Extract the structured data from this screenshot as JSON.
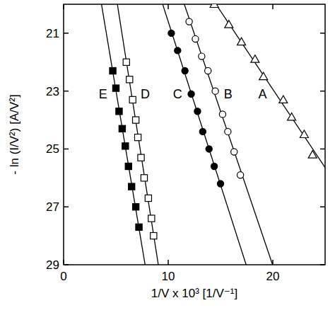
{
  "chart_data": {
    "type": "scatter",
    "x_label": "1/V x 10³  [1/V⁻¹]",
    "y_label": "- ln (I/V²)  [A/V²]",
    "xlim": [
      0,
      25
    ],
    "xticks": [
      0,
      10,
      20
    ],
    "ylim": [
      20,
      29
    ],
    "yticks": [
      21,
      23,
      25,
      27,
      29
    ],
    "grid": false,
    "series": [
      {
        "name": "A",
        "color": "#000000",
        "marker": "triangle-open",
        "line_style": "solid",
        "x": [
          14.4,
          15.8,
          17.0,
          18.3,
          19.1,
          21.0,
          21.8,
          23.0,
          23.8
        ],
        "values": [
          20.0,
          20.7,
          21.3,
          21.9,
          22.5,
          23.3,
          23.9,
          24.5,
          25.2
        ]
      },
      {
        "name": "B",
        "color": "#000000",
        "marker": "circle-open",
        "line_style": "solid",
        "x": [
          12.0,
          12.6,
          13.2,
          13.8,
          14.5,
          15.2,
          15.7,
          16.3,
          16.9
        ],
        "values": [
          20.6,
          21.2,
          21.8,
          22.3,
          23.0,
          23.8,
          24.4,
          25.1,
          25.9
        ]
      },
      {
        "name": "C",
        "color": "#000000",
        "marker": "circle-filled",
        "line_style": "solid",
        "x": [
          10.3,
          10.9,
          11.6,
          12.2,
          12.8,
          13.3,
          13.9,
          14.4,
          15.0
        ],
        "values": [
          21.0,
          21.6,
          22.3,
          23.1,
          23.7,
          24.4,
          25.0,
          25.6,
          26.2
        ]
      },
      {
        "name": "D",
        "color": "#000000",
        "marker": "square-open",
        "line_style": "solid",
        "x": [
          6.0,
          6.3,
          6.6,
          6.9,
          7.1,
          7.4,
          7.7,
          8.1,
          8.4,
          8.6
        ],
        "values": [
          22.0,
          22.6,
          23.3,
          24.0,
          24.6,
          25.3,
          26.0,
          26.7,
          27.4,
          28.0
        ]
      },
      {
        "name": "E",
        "color": "#000000",
        "marker": "square-filled",
        "line_style": "solid",
        "x": [
          4.7,
          5.0,
          5.3,
          5.6,
          5.9,
          6.2,
          6.5,
          6.9,
          7.2
        ],
        "values": [
          22.3,
          22.9,
          23.7,
          24.3,
          24.9,
          25.6,
          26.3,
          27.0,
          27.7
        ]
      }
    ]
  }
}
